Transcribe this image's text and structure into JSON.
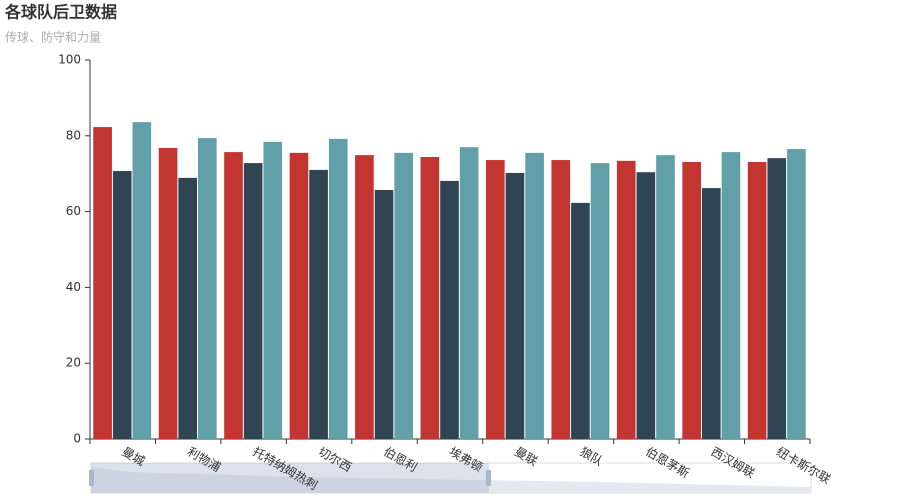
{
  "chart_data": {
    "type": "bar",
    "title": "各球队后卫数据",
    "subtitle": "传球、防守和力量",
    "categories": [
      "曼城",
      "利物浦",
      "托特纳姆热刺",
      "切尔西",
      "伯恩利",
      "埃弗顿",
      "曼联",
      "狼队",
      "伯恩茅斯",
      "西汉姆联",
      "纽卡斯尔联"
    ],
    "series": [
      {
        "color": "#c23531",
        "values": [
          82.3,
          76.8,
          75.7,
          75.5,
          74.9,
          74.4,
          73.6,
          73.6,
          73.4,
          73.1,
          73.1
        ]
      },
      {
        "color": "#2f4554",
        "values": [
          70.7,
          68.9,
          72.8,
          71.0,
          65.7,
          68.1,
          70.2,
          62.3,
          70.4,
          66.2,
          74.1
        ]
      },
      {
        "color": "#61a0a8",
        "values": [
          83.6,
          79.4,
          78.4,
          79.2,
          75.5,
          77.0,
          75.5,
          72.8,
          74.9,
          75.7,
          76.5
        ]
      }
    ],
    "ylim": [
      0,
      100
    ],
    "yticks": [
      0,
      20,
      40,
      60,
      80,
      100
    ]
  }
}
